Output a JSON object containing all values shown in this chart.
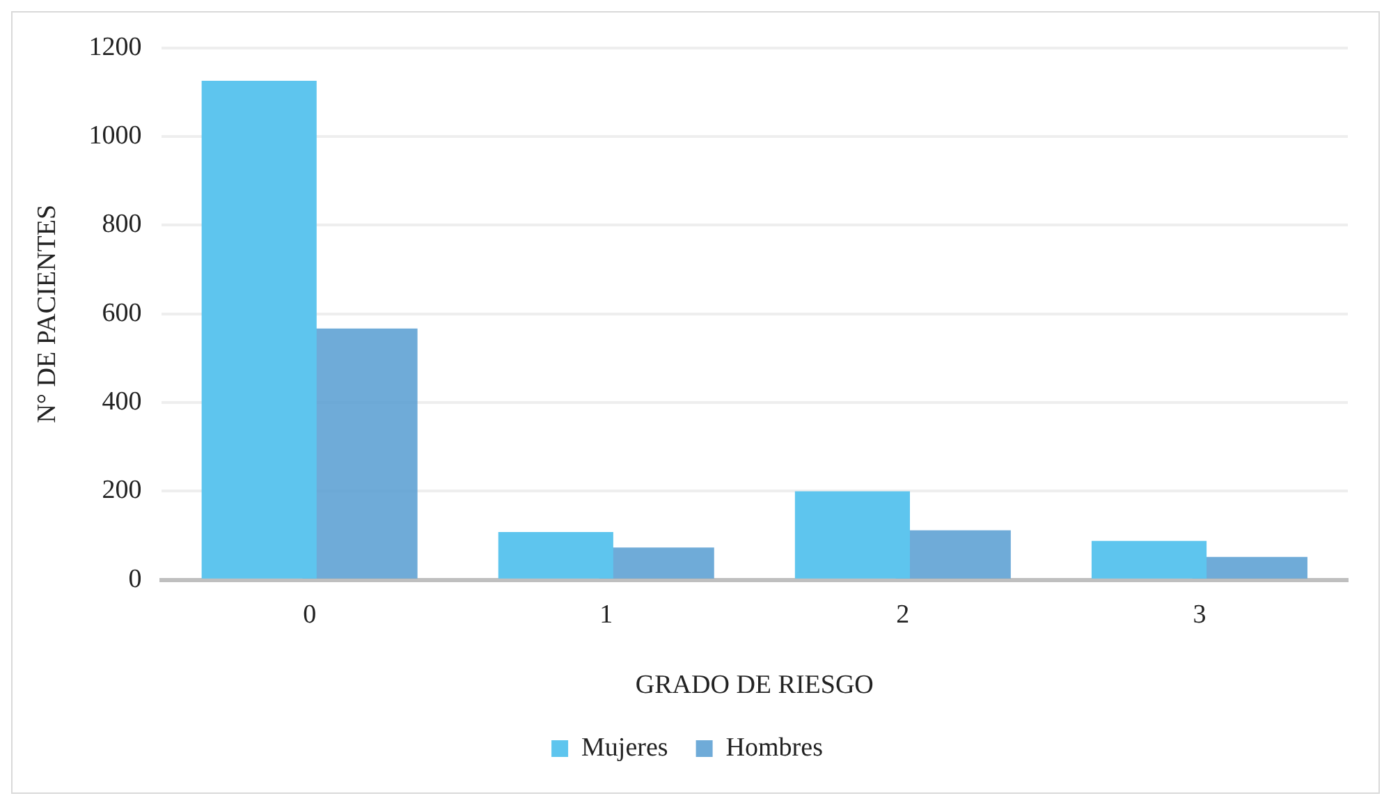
{
  "chart_data": {
    "type": "bar",
    "xlabel": "GRADO DE RIESGO",
    "ylabel": "N° DE PACIENTES",
    "categories": [
      "0",
      "1",
      "2",
      "3"
    ],
    "series": [
      {
        "name": "Mujeres",
        "color": "#5ec5ee",
        "values": [
          1126,
          108,
          200,
          88
        ]
      },
      {
        "name": "Hombres",
        "color": "#5b9fd3",
        "values": [
          567,
          73,
          112,
          52
        ]
      }
    ],
    "ylim": [
      0,
      1200
    ],
    "yticks": [
      0,
      200,
      400,
      600,
      800,
      1000,
      1200
    ],
    "grid": "y",
    "legend": "bottom"
  }
}
